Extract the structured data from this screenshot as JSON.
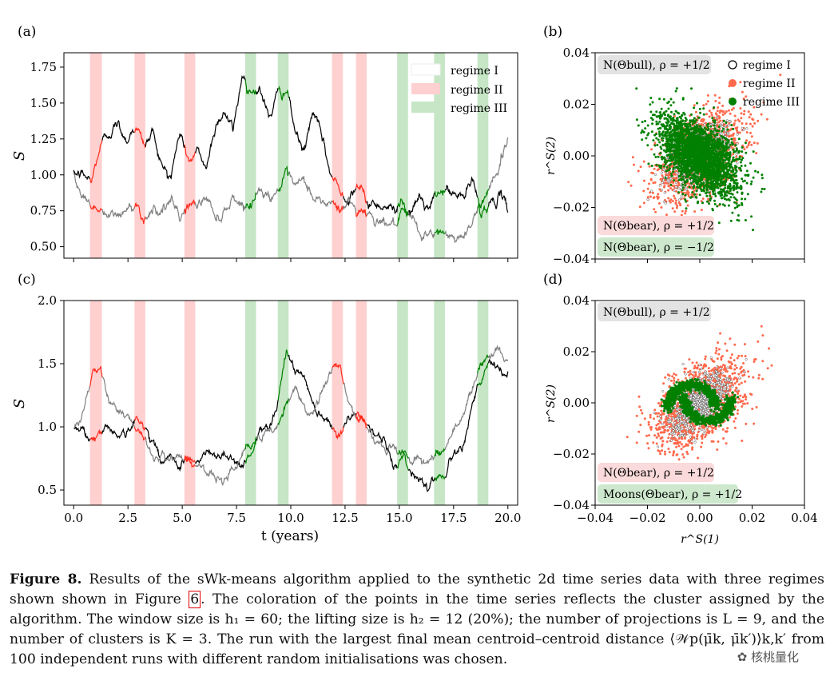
{
  "figure": {
    "panels": {
      "a": {
        "label": "(a)",
        "ylabel": "S",
        "ytick_labels": [
          "0.50",
          "0.75",
          "1.00",
          "1.25",
          "1.50",
          "1.75"
        ]
      },
      "b": {
        "label": "(b)",
        "ylabel": "r^S(2)",
        "ytick_labels": [
          "−0.04",
          "−0.02",
          "0.00",
          "0.02",
          "0.04"
        ]
      },
      "c": {
        "label": "(c)",
        "ylabel": "S",
        "ytick_labels": [
          "0.5",
          "1.0",
          "1.5",
          "2.0"
        ]
      },
      "d": {
        "label": "(d)",
        "ylabel": "r^S(2)",
        "xlabel": "r^S(1)",
        "ytick_labels": [
          "−0.04",
          "−0.02",
          "0.00",
          "0.02",
          "0.04"
        ],
        "xtick_labels": [
          "−0.04",
          "−0.02",
          "0.00",
          "0.02",
          "0.04"
        ]
      }
    },
    "shared_xlabel": "t (years)",
    "xtick_labels": [
      "0.0",
      "2.5",
      "5.0",
      "7.5",
      "10.0",
      "12.5",
      "15.0",
      "17.5",
      "20.0"
    ],
    "legend": [
      "regime I",
      "regime II",
      "regime III"
    ],
    "tags": {
      "b_bull": "N(Θbull), ρ = +1/2",
      "b_bear1": "N(Θbear), ρ = +1/2",
      "b_bear2": "N(Θbear), ρ = −1/2",
      "d_bull": "N(Θbull), ρ = +1/2",
      "d_bear1": "N(Θbear), ρ = +1/2",
      "d_moons": "Moons(Θbear), ρ = +1/2"
    },
    "colors": {
      "regime_I": "#000000",
      "regime_II": "#ff2a1a",
      "regime_III": "#008000",
      "gray_series": "#808080",
      "shade_II": "#ffd0d0",
      "shade_III": "#c6e6c6"
    },
    "chart_data": {
      "type": "line",
      "x_range": [
        0,
        20
      ],
      "regime_II_intervals": [
        [
          0.75,
          1.3
        ],
        [
          2.8,
          3.3
        ],
        [
          5.1,
          5.6
        ],
        [
          11.9,
          12.4
        ],
        [
          13.0,
          13.5
        ]
      ],
      "regime_III_intervals": [
        [
          7.9,
          8.4
        ],
        [
          9.4,
          9.9
        ],
        [
          14.9,
          15.4
        ],
        [
          16.6,
          17.1
        ],
        [
          18.6,
          19.1
        ]
      ],
      "panel_a": {
        "ylim": [
          0.42,
          1.85
        ],
        "series": [
          {
            "name": "S1",
            "values": [
              1.0,
              1.0,
              0.95,
              1.2,
              1.3,
              1.35,
              1.25,
              1.35,
              1.2,
              1.3,
              1.05,
              1.0,
              1.3,
              1.1,
              1.15,
              1.05,
              1.35,
              1.45,
              1.3,
              1.7,
              1.6,
              1.6,
              1.4,
              1.55,
              1.6,
              1.3,
              1.15,
              1.45,
              1.25,
              1.0,
              0.9,
              0.85,
              0.95,
              0.8,
              0.8,
              0.8,
              0.75,
              0.85,
              0.7,
              0.85,
              0.75,
              0.85,
              0.9,
              0.85,
              0.85,
              0.95,
              0.75,
              0.8,
              0.85,
              0.75
            ]
          },
          {
            "name": "S2",
            "values": [
              1.0,
              0.85,
              0.8,
              0.75,
              0.7,
              0.72,
              0.75,
              0.8,
              0.7,
              0.78,
              0.75,
              0.8,
              0.7,
              0.8,
              0.78,
              0.85,
              0.7,
              0.75,
              0.85,
              0.8,
              0.8,
              0.9,
              0.85,
              0.9,
              0.98,
              0.9,
              0.95,
              0.85,
              0.8,
              0.8,
              0.75,
              0.82,
              0.75,
              0.75,
              0.7,
              0.68,
              0.65,
              0.7,
              0.7,
              0.6,
              0.58,
              0.58,
              0.6,
              0.55,
              0.6,
              0.65,
              0.8,
              0.95,
              1.05,
              1.25
            ]
          }
        ]
      },
      "panel_c": {
        "ylim": [
          0.38,
          2.0
        ],
        "series": [
          {
            "name": "S1",
            "values": [
              1.0,
              1.0,
              0.9,
              0.95,
              1.0,
              0.95,
              0.95,
              1.05,
              1.0,
              0.9,
              0.7,
              0.75,
              0.72,
              0.75,
              0.7,
              0.8,
              0.75,
              0.8,
              0.75,
              0.7,
              0.8,
              0.95,
              1.0,
              1.2,
              1.6,
              1.45,
              1.4,
              1.2,
              1.1,
              1.05,
              0.95,
              1.05,
              1.1,
              1.05,
              0.95,
              0.9,
              0.7,
              0.75,
              0.65,
              0.6,
              0.55,
              0.6,
              0.65,
              0.8,
              0.9,
              1.2,
              1.35,
              1.5,
              1.45,
              1.4
            ]
          },
          {
            "name": "S2",
            "values": [
              1.0,
              1.1,
              1.4,
              1.45,
              1.2,
              1.15,
              1.1,
              0.95,
              0.9,
              0.75,
              0.8,
              0.75,
              0.78,
              0.72,
              0.7,
              0.62,
              0.58,
              0.6,
              0.7,
              0.8,
              0.85,
              0.9,
              0.95,
              1.0,
              1.15,
              1.3,
              1.2,
              1.1,
              1.3,
              1.4,
              1.5,
              1.2,
              1.1,
              1.0,
              0.9,
              0.8,
              0.85,
              0.8,
              0.75,
              0.75,
              0.7,
              0.8,
              0.85,
              1.0,
              1.1,
              1.3,
              1.5,
              1.55,
              1.6,
              1.55
            ]
          }
        ]
      },
      "scatter_xlim": [
        -0.04,
        0.04
      ],
      "scatter_ylim": [
        -0.04,
        0.04
      ]
    }
  },
  "caption": {
    "label": "Figure 8.",
    "p1": " Results of the sWk-means algorithm applied to the synthetic 2d time series data with three regimes shown shown in Figure ",
    "ref": "6",
    "p2": ". The coloration of the points in the time series reflects the cluster assigned by the algorithm. The window size is h₁ = 60; the lifting size is h₂ = 12 (20%); the number of projections is L = 9, and the number of clusters is K = 3. The run with the largest final mean centroid–centroid distance ⟨𝒲p(μ̄k, μ̄k′)⟩k,k′ from 100 independent runs with different random initialisations was chosen."
  },
  "watermark": "核桃量化"
}
